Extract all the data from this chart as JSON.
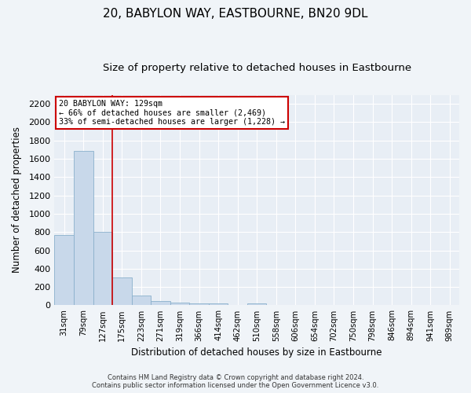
{
  "title": "20, BABYLON WAY, EASTBOURNE, BN20 9DL",
  "subtitle": "Size of property relative to detached houses in Eastbourne",
  "xlabel": "Distribution of detached houses by size in Eastbourne",
  "ylabel": "Number of detached properties",
  "footer_line1": "Contains HM Land Registry data © Crown copyright and database right 2024.",
  "footer_line2": "Contains public sector information licensed under the Open Government Licence v3.0.",
  "categories": [
    "31sqm",
    "79sqm",
    "127sqm",
    "175sqm",
    "223sqm",
    "271sqm",
    "319sqm",
    "366sqm",
    "414sqm",
    "462sqm",
    "510sqm",
    "558sqm",
    "606sqm",
    "654sqm",
    "702sqm",
    "750sqm",
    "798sqm",
    "846sqm",
    "894sqm",
    "941sqm",
    "989sqm"
  ],
  "values": [
    770,
    1690,
    800,
    300,
    110,
    45,
    32,
    25,
    22,
    0,
    20,
    0,
    0,
    0,
    0,
    0,
    0,
    0,
    0,
    0,
    0
  ],
  "bar_color": "#c8d8ea",
  "bar_edge_color": "#8ab0cc",
  "marker_line_color": "#cc0000",
  "annotation_text_line1": "20 BABYLON WAY: 129sqm",
  "annotation_text_line2": "← 66% of detached houses are smaller (2,469)",
  "annotation_text_line3": "33% of semi-detached houses are larger (1,228) →",
  "annotation_box_facecolor": "#ffffff",
  "annotation_box_edgecolor": "#cc0000",
  "ylim": [
    0,
    2300
  ],
  "yticks": [
    0,
    200,
    400,
    600,
    800,
    1000,
    1200,
    1400,
    1600,
    1800,
    2000,
    2200
  ],
  "background_color": "#f0f4f8",
  "plot_bg_color": "#e8eef5",
  "grid_color": "#ffffff",
  "title_fontsize": 11,
  "subtitle_fontsize": 9.5,
  "marker_bar_index": 2,
  "fig_width": 6.0,
  "fig_height": 5.0,
  "fig_dpi": 100
}
